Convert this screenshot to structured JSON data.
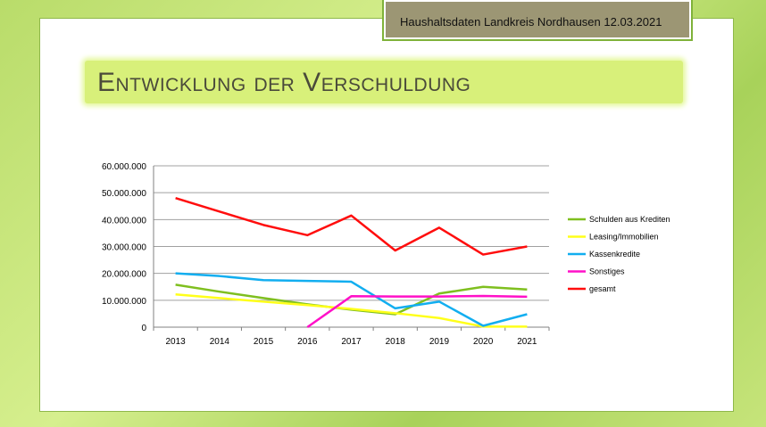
{
  "header": {
    "text": "Haushaltsdaten Landkreis Nordhausen   12.03.2021"
  },
  "slide": {
    "title": "Entwicklung der Verschuldung"
  },
  "chart_data": {
    "type": "line",
    "categories": [
      "2013",
      "2014",
      "2015",
      "2016",
      "2017",
      "2018",
      "2019",
      "2020",
      "2021"
    ],
    "ylim": [
      0,
      60000000
    ],
    "yticks": [
      "0",
      "10.000.000",
      "20.000.000",
      "30.000.000",
      "40.000.000",
      "50.000.000",
      "60.000.000"
    ],
    "grid": true,
    "legend": "right",
    "series": [
      {
        "name": "Schulden aus Krediten",
        "color": "#7fbf1f",
        "values": [
          15800000,
          13200000,
          10800000,
          8500000,
          6500000,
          4800000,
          12500000,
          15000000,
          14000000
        ]
      },
      {
        "name": "Leasing/Immobilien",
        "color": "#ffff1a",
        "values": [
          12200000,
          10800000,
          9500000,
          8200000,
          6800000,
          5200000,
          3400000,
          200000,
          200000
        ]
      },
      {
        "name": "Kassenkredite",
        "color": "#12aef0",
        "values": [
          20000000,
          19000000,
          17500000,
          17200000,
          16900000,
          7000000,
          9500000,
          500000,
          4800000
        ]
      },
      {
        "name": "Sonstiges",
        "color": "#ff10c8",
        "values": [
          null,
          null,
          null,
          0,
          11500000,
          11400000,
          11400000,
          11600000,
          11300000
        ]
      },
      {
        "name": "gesamt",
        "color": "#ff0d0d",
        "values": [
          48000000,
          43000000,
          38000000,
          34200000,
          41500000,
          28500000,
          37000000,
          27000000,
          30000000
        ]
      }
    ]
  }
}
